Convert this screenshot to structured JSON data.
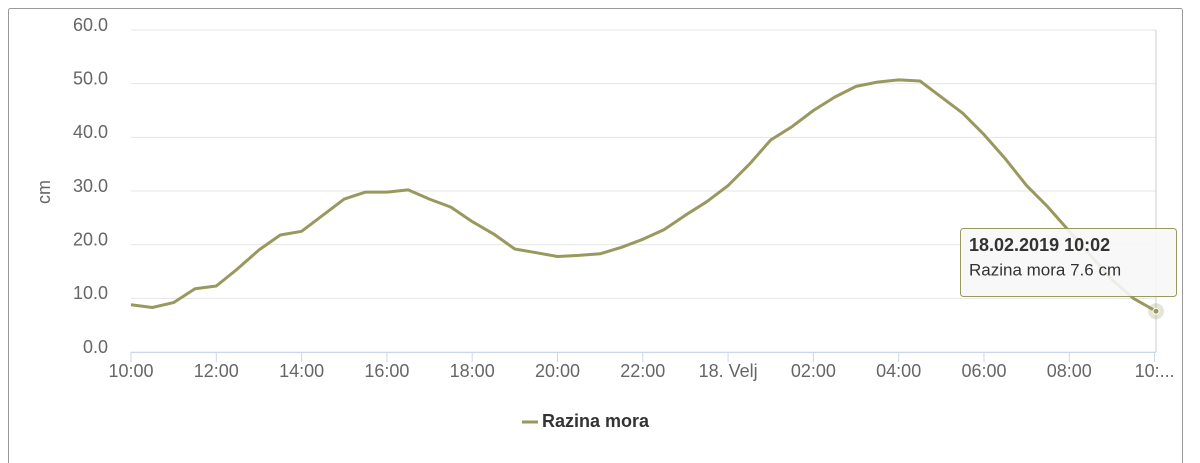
{
  "chart_data": {
    "type": "line",
    "y_label": "cm",
    "x": [
      "2019-02-17T10:00",
      "2019-02-17T10:30",
      "2019-02-17T11:00",
      "2019-02-17T11:30",
      "2019-02-17T12:00",
      "2019-02-17T12:30",
      "2019-02-17T13:00",
      "2019-02-17T13:30",
      "2019-02-17T14:00",
      "2019-02-17T14:30",
      "2019-02-17T15:00",
      "2019-02-17T15:30",
      "2019-02-17T16:00",
      "2019-02-17T16:30",
      "2019-02-17T17:00",
      "2019-02-17T17:30",
      "2019-02-17T18:00",
      "2019-02-17T18:30",
      "2019-02-17T19:00",
      "2019-02-17T19:30",
      "2019-02-17T20:00",
      "2019-02-17T20:30",
      "2019-02-17T21:00",
      "2019-02-17T21:30",
      "2019-02-17T22:00",
      "2019-02-17T22:30",
      "2019-02-17T23:00",
      "2019-02-17T23:30",
      "2019-02-18T00:00",
      "2019-02-18T00:30",
      "2019-02-18T01:00",
      "2019-02-18T01:30",
      "2019-02-18T02:00",
      "2019-02-18T02:30",
      "2019-02-18T03:00",
      "2019-02-18T03:30",
      "2019-02-18T04:00",
      "2019-02-18T04:30",
      "2019-02-18T05:00",
      "2019-02-18T05:30",
      "2019-02-18T06:00",
      "2019-02-18T06:30",
      "2019-02-18T07:00",
      "2019-02-18T07:30",
      "2019-02-18T08:00",
      "2019-02-18T08:30",
      "2019-02-18T09:00",
      "2019-02-18T09:30",
      "2019-02-18T10:02"
    ],
    "series": [
      {
        "name": "Razina mora",
        "color": "#99995f",
        "values": [
          8.8,
          8.3,
          9.2,
          11.8,
          12.3,
          15.5,
          19,
          21.8,
          22.5,
          25.5,
          28.5,
          29.8,
          29.8,
          30.2,
          28.5,
          27,
          24.3,
          22,
          19.2,
          18.5,
          17.8,
          18,
          18.3,
          19.5,
          21,
          22.8,
          25.5,
          28,
          31,
          35,
          39.5,
          42,
          45,
          47.5,
          49.5,
          50.3,
          50.7,
          50.5,
          47.5,
          44.5,
          40.5,
          36,
          31,
          27,
          22.5,
          18,
          13.5,
          10,
          7.6
        ]
      }
    ],
    "xlim": [
      "2019-02-17T10:00",
      "2019-02-18T10:02"
    ],
    "xticks": [
      {
        "value": "2019-02-17T10:00",
        "label": "10:00"
      },
      {
        "value": "2019-02-17T12:00",
        "label": "12:00"
      },
      {
        "value": "2019-02-17T14:00",
        "label": "14:00"
      },
      {
        "value": "2019-02-17T16:00",
        "label": "16:00"
      },
      {
        "value": "2019-02-17T18:00",
        "label": "18:00"
      },
      {
        "value": "2019-02-17T20:00",
        "label": "20:00"
      },
      {
        "value": "2019-02-17T22:00",
        "label": "22:00"
      },
      {
        "value": "2019-02-18T00:00",
        "label": "18. Velj"
      },
      {
        "value": "2019-02-18T02:00",
        "label": "02:00"
      },
      {
        "value": "2019-02-18T04:00",
        "label": "04:00"
      },
      {
        "value": "2019-02-18T06:00",
        "label": "06:00"
      },
      {
        "value": "2019-02-18T08:00",
        "label": "08:00"
      },
      {
        "value": "2019-02-18T10:00",
        "label": "10:..."
      }
    ],
    "ylim": [
      0,
      60
    ],
    "yticks": [
      {
        "value": 0,
        "label": "0.0"
      },
      {
        "value": 10,
        "label": "10.0"
      },
      {
        "value": 20,
        "label": "20.0"
      },
      {
        "value": 30,
        "label": "30.0"
      },
      {
        "value": 40,
        "label": "40.0"
      },
      {
        "value": 50,
        "label": "50.0"
      },
      {
        "value": 60,
        "label": "60.0"
      }
    ],
    "grid": true,
    "legend": "bottom",
    "tooltip": {
      "title": "18.02.2019 10:02",
      "text": "Razina mora 7.6 cm"
    }
  }
}
